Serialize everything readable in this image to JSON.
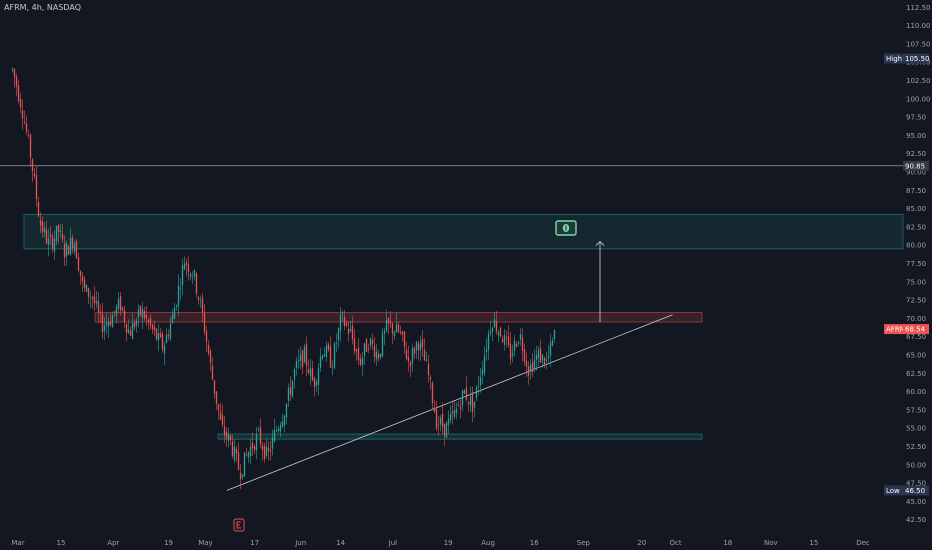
{
  "header": {
    "title": "AFRM, 4h, NASDAQ"
  },
  "colors": {
    "background": "#131722",
    "up": "#26a69a",
    "down": "#ef5350",
    "grid_line": "#9aa0ad",
    "supply_zone": "#26a69a",
    "resistance_zone": "#ef5350",
    "tag_dark": "#2a3550",
    "tag_price": "#ef5350"
  },
  "price_axis": {
    "ticks": [
      "112.50",
      "110.00",
      "107.50",
      "105.00",
      "102.50",
      "100.00",
      "97.50",
      "95.00",
      "92.50",
      "90.00",
      "87.50",
      "85.00",
      "82.50",
      "80.00",
      "77.50",
      "75.00",
      "72.50",
      "70.00",
      "67.50",
      "65.00",
      "62.50",
      "60.00",
      "57.50",
      "55.00",
      "52.50",
      "50.00",
      "47.50",
      "45.00",
      "42.50"
    ]
  },
  "time_axis": {
    "ticks": [
      "Mar",
      "15",
      "Apr",
      "19",
      "May",
      "17",
      "Jun",
      "14",
      "Jul",
      "19",
      "Aug",
      "16",
      "Sep",
      "20",
      "Oct",
      "18",
      "Nov",
      "15",
      "Dec"
    ]
  },
  "markers": {
    "high": {
      "label": "High",
      "value": "105.50"
    },
    "low": {
      "label": "Low",
      "value": "46.50"
    },
    "level": {
      "value": "90.85"
    },
    "last": {
      "label": "AFRM",
      "value": "68.54"
    }
  },
  "annotations": {
    "earnings_icon": "earnings-icon",
    "target_icon": "money-icon"
  },
  "chart_data": {
    "type": "candlestick",
    "symbol": "AFRM",
    "interval": "4h",
    "exchange": "NASDAQ",
    "ylim": [
      41.5,
      113.5
    ],
    "high": 105.5,
    "low": 46.5,
    "last": 68.54,
    "horizontal_level": 90.85,
    "zones": [
      {
        "name": "supply",
        "from": 79.5,
        "to": 84.2
      },
      {
        "name": "resistance",
        "from": 69.5,
        "to": 70.8
      },
      {
        "name": "support",
        "from": 53.5,
        "to": 54.2
      }
    ],
    "trendline": {
      "from": [
        "2021-05-08",
        46.5
      ],
      "to": [
        "2021-09-30",
        70.5
      ]
    },
    "target_arrow": {
      "from": 69.5,
      "to": 80.5
    },
    "close_path": [
      [
        "2021-02-27",
        104
      ],
      [
        "2021-03-02",
        99
      ],
      [
        "2021-03-05",
        92
      ],
      [
        "2021-03-08",
        83
      ],
      [
        "2021-03-11",
        80
      ],
      [
        "2021-03-14",
        82
      ],
      [
        "2021-03-16",
        79
      ],
      [
        "2021-03-19",
        81
      ],
      [
        "2021-03-22",
        74
      ],
      [
        "2021-03-25",
        73
      ],
      [
        "2021-03-28",
        69
      ],
      [
        "2021-03-31",
        70
      ],
      [
        "2021-04-03",
        72
      ],
      [
        "2021-04-06",
        68
      ],
      [
        "2021-04-10",
        71
      ],
      [
        "2021-04-14",
        68
      ],
      [
        "2021-04-17",
        66
      ],
      [
        "2021-04-20",
        70
      ],
      [
        "2021-04-24",
        78
      ],
      [
        "2021-04-27",
        76
      ],
      [
        "2021-04-30",
        70
      ],
      [
        "2021-05-03",
        62
      ],
      [
        "2021-05-06",
        55
      ],
      [
        "2021-05-09",
        53
      ],
      [
        "2021-05-12",
        49
      ],
      [
        "2021-05-15",
        52
      ],
      [
        "2021-05-18",
        54
      ],
      [
        "2021-05-21",
        51
      ],
      [
        "2021-05-24",
        55
      ],
      [
        "2021-05-27",
        58
      ],
      [
        "2021-05-30",
        63
      ],
      [
        "2021-06-02",
        65
      ],
      [
        "2021-06-05",
        61
      ],
      [
        "2021-06-08",
        66
      ],
      [
        "2021-06-11",
        64
      ],
      [
        "2021-06-14",
        70
      ],
      [
        "2021-06-17",
        68
      ],
      [
        "2021-06-20",
        64
      ],
      [
        "2021-06-23",
        67
      ],
      [
        "2021-06-26",
        65
      ],
      [
        "2021-06-29",
        69
      ],
      [
        "2021-07-03",
        68
      ],
      [
        "2021-07-06",
        64
      ],
      [
        "2021-07-09",
        67
      ],
      [
        "2021-07-12",
        63
      ],
      [
        "2021-07-15",
        56
      ],
      [
        "2021-07-18",
        55
      ],
      [
        "2021-07-21",
        57
      ],
      [
        "2021-07-24",
        60
      ],
      [
        "2021-07-27",
        58
      ],
      [
        "2021-07-30",
        64
      ],
      [
        "2021-08-02",
        70
      ],
      [
        "2021-08-05",
        68
      ],
      [
        "2021-08-08",
        65
      ],
      [
        "2021-08-11",
        68
      ],
      [
        "2021-08-14",
        63
      ],
      [
        "2021-08-17",
        65
      ],
      [
        "2021-08-20",
        64
      ],
      [
        "2021-08-23",
        68.54
      ]
    ]
  }
}
